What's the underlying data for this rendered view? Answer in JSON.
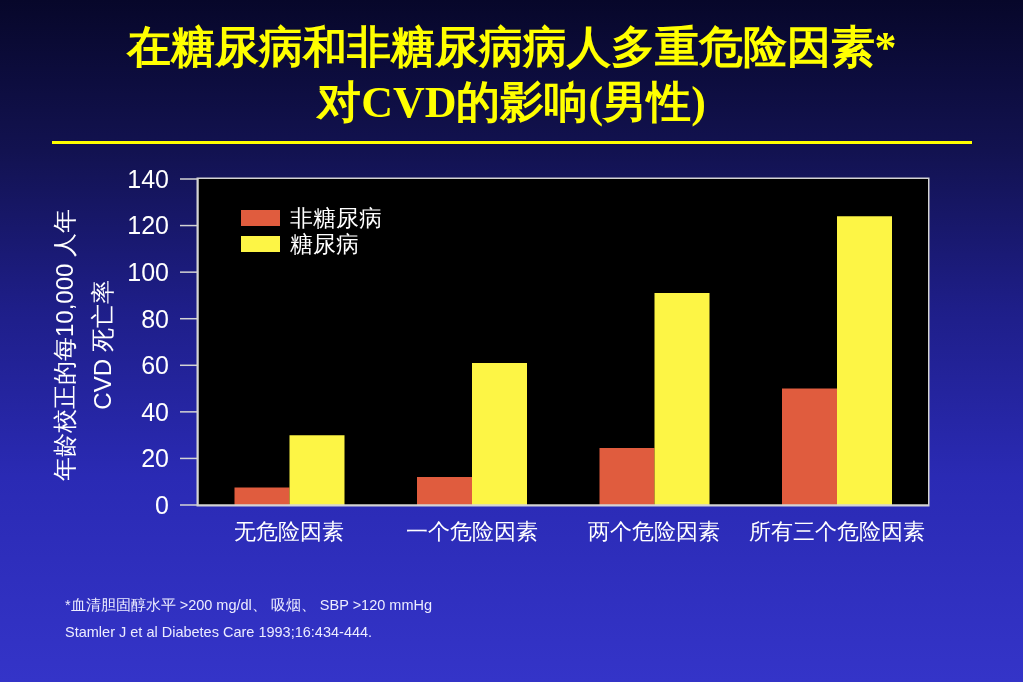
{
  "chart_data": {
    "type": "bar",
    "title": "在糖尿病和非糖尿病病人多重危险因素*\n对CVD的影响(男性)",
    "ylabel": "年龄校正的每10,000 人年\nCVD 死亡率",
    "categories": [
      "无危险因素",
      "一个危险因素",
      "两个危险因素",
      "所有三个危险因素"
    ],
    "series": [
      {
        "name": "非糖尿病",
        "color": "#e05c3e",
        "values": [
          7.5,
          12,
          24.5,
          50
        ]
      },
      {
        "name": "糖尿病",
        "color": "#fdf545",
        "values": [
          30,
          61,
          91,
          124
        ]
      }
    ],
    "ylim": [
      0,
      140
    ],
    "yticks": [
      0,
      20,
      40,
      60,
      80,
      100,
      120,
      140
    ],
    "legend": "top left",
    "annotations": [
      "*血清胆固醇水平 >200 mg/dl、 吸烟、 SBP >120 mmHg",
      "Stamler J et al Diabetes Care 1993;16:434-444."
    ]
  }
}
